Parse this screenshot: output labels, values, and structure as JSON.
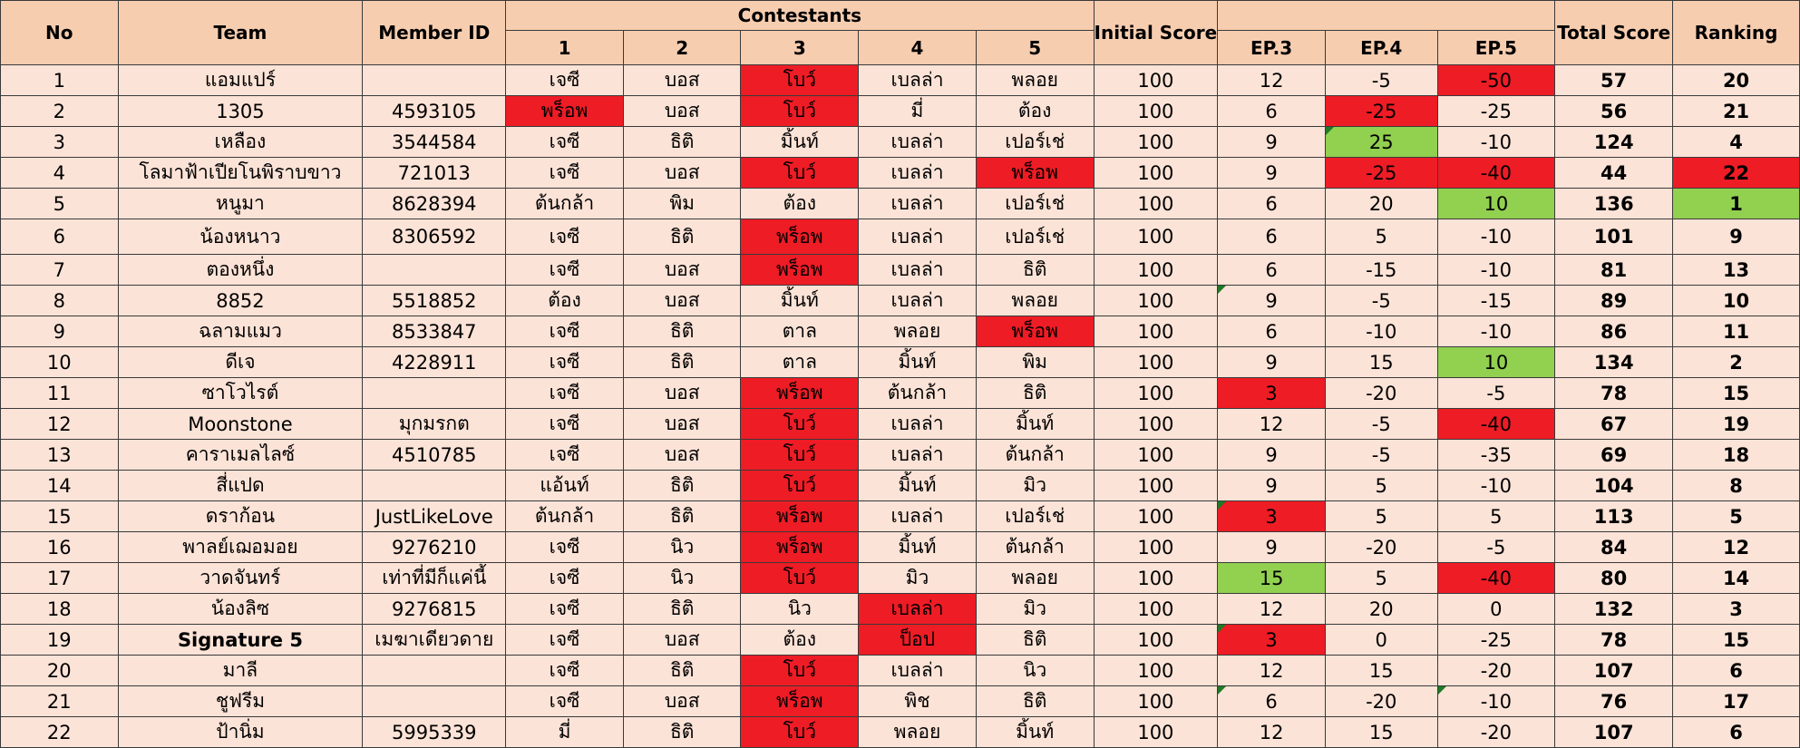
{
  "headers": {
    "no": "No",
    "team": "Team",
    "member_id": "Member ID",
    "contestants": "Contestants",
    "contestant_nums": [
      "1",
      "2",
      "3",
      "4",
      "5"
    ],
    "initial_score": "Initial Score",
    "episodes": [
      "EP.3",
      "EP.4",
      "EP.5"
    ],
    "total_score": "Total Score",
    "ranking": "Ranking"
  },
  "colors": {
    "red": "#ee1c25",
    "green": "#92d050",
    "header": "#f7cdb0",
    "row": "#fce3d7"
  },
  "rows": [
    {
      "no": "1",
      "team": "แอมแปร์",
      "member_id": "",
      "contestants": [
        "เจซี",
        "บอส",
        "โบว์",
        "เบลล่า",
        "พลอย"
      ],
      "initial": "100",
      "ep3": "12",
      "ep4": "-5",
      "ep5": "-50",
      "total": "57",
      "rank": "20"
    },
    {
      "no": "2",
      "team": "1305",
      "member_id": "4593105",
      "contestants": [
        "พร็อพ",
        "บอส",
        "โบว์",
        "มี่",
        "ต้อง"
      ],
      "initial": "100",
      "ep3": "6",
      "ep4": "-25",
      "ep5": "-25",
      "total": "56",
      "rank": "21"
    },
    {
      "no": "3",
      "team": "เหลือง",
      "member_id": "3544584",
      "contestants": [
        "เจซี",
        "ธิติ",
        "มิ้นท์",
        "เบลล่า",
        "เปอร์เช่"
      ],
      "initial": "100",
      "ep3": "9",
      "ep4": "25",
      "ep5": "-10",
      "total": "124",
      "rank": "4"
    },
    {
      "no": "4",
      "team": "โลมาฟ้าเปียโนพิราบขาว",
      "member_id": "721013",
      "contestants": [
        "เจซี",
        "บอส",
        "โบว์",
        "เบลล่า",
        "พร็อพ"
      ],
      "initial": "100",
      "ep3": "9",
      "ep4": "-25",
      "ep5": "-40",
      "total": "44",
      "rank": "22"
    },
    {
      "no": "5",
      "team": "หนูมา",
      "member_id": "8628394",
      "contestants": [
        "ต้นกล้า",
        "พิม",
        "ต้อง",
        "เบลล่า",
        "เปอร์เช่"
      ],
      "initial": "100",
      "ep3": "6",
      "ep4": "20",
      "ep5": "10",
      "total": "136",
      "rank": "1"
    },
    {
      "no": "6",
      "team": "น้องหนาว",
      "member_id": "8306592",
      "contestants": [
        "เจซี",
        "ธิติ",
        "พร็อพ",
        "เบลล่า",
        "เปอร์เช่"
      ],
      "initial": "100",
      "ep3": "6",
      "ep4": "5",
      "ep5": "-10",
      "total": "101",
      "rank": "9"
    },
    {
      "no": "7",
      "team": "ตองหนึ่ง",
      "member_id": "",
      "contestants": [
        "เจซี",
        "บอส",
        "พร็อพ",
        "เบลล่า",
        "ธิติ"
      ],
      "initial": "100",
      "ep3": "6",
      "ep4": "-15",
      "ep5": "-10",
      "total": "81",
      "rank": "13"
    },
    {
      "no": "8",
      "team": "8852",
      "member_id": "5518852",
      "contestants": [
        "ต้อง",
        "บอส",
        "มิ้นท์",
        "เบลล่า",
        "พลอย"
      ],
      "initial": "100",
      "ep3": "9",
      "ep4": "-5",
      "ep5": "-15",
      "total": "89",
      "rank": "10"
    },
    {
      "no": "9",
      "team": "ฉลามแมว",
      "member_id": "8533847",
      "contestants": [
        "เจซี",
        "ธิติ",
        "ตาล",
        "พลอย",
        "พร็อพ"
      ],
      "initial": "100",
      "ep3": "6",
      "ep4": "-10",
      "ep5": "-10",
      "total": "86",
      "rank": "11"
    },
    {
      "no": "10",
      "team": "ดีเจ",
      "member_id": "4228911",
      "contestants": [
        "เจซี",
        "ธิติ",
        "ตาล",
        "มิ้นท์",
        "พิม"
      ],
      "initial": "100",
      "ep3": "9",
      "ep4": "15",
      "ep5": "10",
      "total": "134",
      "rank": "2"
    },
    {
      "no": "11",
      "team": "ซาโวไรต์",
      "member_id": "",
      "contestants": [
        "เจซี",
        "บอส",
        "พร็อพ",
        "ต้นกล้า",
        "ธิติ"
      ],
      "initial": "100",
      "ep3": "3",
      "ep4": "-20",
      "ep5": "-5",
      "total": "78",
      "rank": "15"
    },
    {
      "no": "12",
      "team": "Moonstone",
      "member_id": "มุกมรกต",
      "contestants": [
        "เจซี",
        "บอส",
        "โบว์",
        "เบลล่า",
        "มิ้นท์"
      ],
      "initial": "100",
      "ep3": "12",
      "ep4": "-5",
      "ep5": "-40",
      "total": "67",
      "rank": "19"
    },
    {
      "no": "13",
      "team": "คาราเมลไลซ์",
      "member_id": "4510785",
      "contestants": [
        "เจซี",
        "บอส",
        "โบว์",
        "เบลล่า",
        "ต้นกล้า"
      ],
      "initial": "100",
      "ep3": "9",
      "ep4": "-5",
      "ep5": "-35",
      "total": "69",
      "rank": "18"
    },
    {
      "no": "14",
      "team": "สี่แปด",
      "member_id": "",
      "contestants": [
        "แอ้นท์",
        "ธิติ",
        "โบว์",
        "มิ้นท์",
        "มิว"
      ],
      "initial": "100",
      "ep3": "9",
      "ep4": "5",
      "ep5": "-10",
      "total": "104",
      "rank": "8"
    },
    {
      "no": "15",
      "team": "ดราก้อน",
      "member_id": "JustLikeLove",
      "contestants": [
        "ต้นกล้า",
        "ธิติ",
        "พร็อพ",
        "เบลล่า",
        "เปอร์เช่"
      ],
      "initial": "100",
      "ep3": "3",
      "ep4": "5",
      "ep5": "5",
      "total": "113",
      "rank": "5"
    },
    {
      "no": "16",
      "team": "พาลย์เฌอมอย",
      "member_id": "9276210",
      "contestants": [
        "เจซี",
        "นิว",
        "พร็อพ",
        "มิ้นท์",
        "ต้นกล้า"
      ],
      "initial": "100",
      "ep3": "9",
      "ep4": "-20",
      "ep5": "-5",
      "total": "84",
      "rank": "12"
    },
    {
      "no": "17",
      "team": "วาดจันทร์",
      "member_id": "เท่าที่มีก็แค่นี้",
      "contestants": [
        "เจซี",
        "นิว",
        "โบว์",
        "มิว",
        "พลอย"
      ],
      "initial": "100",
      "ep3": "15",
      "ep4": "5",
      "ep5": "-40",
      "total": "80",
      "rank": "14"
    },
    {
      "no": "18",
      "team": "น้องลิซ",
      "member_id": "9276815",
      "contestants": [
        "เจซี",
        "ธิติ",
        "นิว",
        "เบลล่า",
        "มิว"
      ],
      "initial": "100",
      "ep3": "12",
      "ep4": "20",
      "ep5": "0",
      "total": "132",
      "rank": "3"
    },
    {
      "no": "19",
      "team": "Signature 5",
      "member_id": "เมฆาเดียวดาย",
      "contestants": [
        "เจซี",
        "บอส",
        "ต้อง",
        "ป็อป",
        "ธิติ"
      ],
      "initial": "100",
      "ep3": "3",
      "ep4": "0",
      "ep5": "-25",
      "total": "78",
      "rank": "15"
    },
    {
      "no": "20",
      "team": "มาลี",
      "member_id": "",
      "contestants": [
        "เจซี",
        "ธิติ",
        "โบว์",
        "เบลล่า",
        "นิว"
      ],
      "initial": "100",
      "ep3": "12",
      "ep4": "15",
      "ep5": "-20",
      "total": "107",
      "rank": "6"
    },
    {
      "no": "21",
      "team": "ชูฟรีม",
      "member_id": "",
      "contestants": [
        "เจซี",
        "บอส",
        "พร็อพ",
        "พิช",
        "ธิติ"
      ],
      "initial": "100",
      "ep3": "6",
      "ep4": "-20",
      "ep5": "-10",
      "total": "76",
      "rank": "17"
    },
    {
      "no": "22",
      "team": "ป้านิ่ม",
      "member_id": "5995339",
      "contestants": [
        "มี่",
        "ธิติ",
        "โบว์",
        "พลอย",
        "มิ้นท์"
      ],
      "initial": "100",
      "ep3": "12",
      "ep4": "15",
      "ep5": "-20",
      "total": "107",
      "rank": "6"
    }
  ]
}
